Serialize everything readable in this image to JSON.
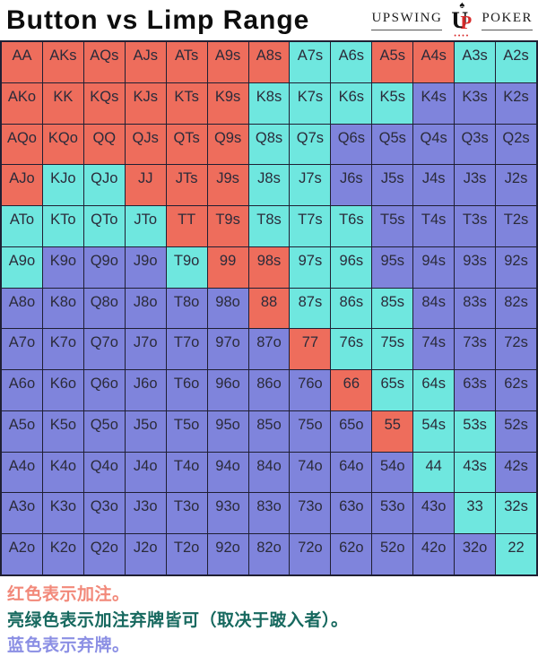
{
  "header": {
    "title": "Button vs Limp Range",
    "logo": {
      "word_left": "UPSWING",
      "word_right": "POKER",
      "monogram_u": "U",
      "monogram_p": "P",
      "spade": "♠",
      "dots": "••••"
    }
  },
  "colors": {
    "raise": "#ee6d5c",
    "raise_or_fold": "#6fe7df",
    "fold": "#7f84dc",
    "grid_line": "#1f1f33",
    "cell_text": "#2b2b3a"
  },
  "chart_data": {
    "type": "heatmap",
    "title": "Button vs Limp Range",
    "action_key": {
      "r": "raise",
      "g": "raise-or-fold (depends on limper)",
      "b": "fold"
    },
    "action_colors": {
      "r": "#ee6d5c",
      "g": "#6fe7df",
      "b": "#7f84dc"
    },
    "hands": [
      [
        "AA",
        "AKs",
        "AQs",
        "AJs",
        "ATs",
        "A9s",
        "A8s",
        "A7s",
        "A6s",
        "A5s",
        "A4s",
        "A3s",
        "A2s"
      ],
      [
        "AKo",
        "KK",
        "KQs",
        "KJs",
        "KTs",
        "K9s",
        "K8s",
        "K7s",
        "K6s",
        "K5s",
        "K4s",
        "K3s",
        "K2s"
      ],
      [
        "AQo",
        "KQo",
        "QQ",
        "QJs",
        "QTs",
        "Q9s",
        "Q8s",
        "Q7s",
        "Q6s",
        "Q5s",
        "Q4s",
        "Q3s",
        "Q2s"
      ],
      [
        "AJo",
        "KJo",
        "QJo",
        "JJ",
        "JTs",
        "J9s",
        "J8s",
        "J7s",
        "J6s",
        "J5s",
        "J4s",
        "J3s",
        "J2s"
      ],
      [
        "ATo",
        "KTo",
        "QTo",
        "JTo",
        "TT",
        "T9s",
        "T8s",
        "T7s",
        "T6s",
        "T5s",
        "T4s",
        "T3s",
        "T2s"
      ],
      [
        "A9o",
        "K9o",
        "Q9o",
        "J9o",
        "T9o",
        "99",
        "98s",
        "97s",
        "96s",
        "95s",
        "94s",
        "93s",
        "92s"
      ],
      [
        "A8o",
        "K8o",
        "Q8o",
        "J8o",
        "T8o",
        "98o",
        "88",
        "87s",
        "86s",
        "85s",
        "84s",
        "83s",
        "82s"
      ],
      [
        "A7o",
        "K7o",
        "Q7o",
        "J7o",
        "T7o",
        "97o",
        "87o",
        "77",
        "76s",
        "75s",
        "74s",
        "73s",
        "72s"
      ],
      [
        "A6o",
        "K6o",
        "Q6o",
        "J6o",
        "T6o",
        "96o",
        "86o",
        "76o",
        "66",
        "65s",
        "64s",
        "63s",
        "62s"
      ],
      [
        "A5o",
        "K5o",
        "Q5o",
        "J5o",
        "T5o",
        "95o",
        "85o",
        "75o",
        "65o",
        "55",
        "54s",
        "53s",
        "52s"
      ],
      [
        "A4o",
        "K4o",
        "Q4o",
        "J4o",
        "T4o",
        "94o",
        "84o",
        "74o",
        "64o",
        "54o",
        "44",
        "43s",
        "42s"
      ],
      [
        "A3o",
        "K3o",
        "Q3o",
        "J3o",
        "T3o",
        "93o",
        "83o",
        "73o",
        "63o",
        "53o",
        "43o",
        "33",
        "32s"
      ],
      [
        "A2o",
        "K2o",
        "Q2o",
        "J2o",
        "T2o",
        "92o",
        "82o",
        "72o",
        "62o",
        "52o",
        "42o",
        "32o",
        "22"
      ]
    ],
    "actions": [
      [
        "r",
        "r",
        "r",
        "r",
        "r",
        "r",
        "r",
        "g",
        "g",
        "r",
        "r",
        "g",
        "g"
      ],
      [
        "r",
        "r",
        "r",
        "r",
        "r",
        "r",
        "g",
        "g",
        "g",
        "g",
        "b",
        "b",
        "b"
      ],
      [
        "r",
        "r",
        "r",
        "r",
        "r",
        "r",
        "g",
        "g",
        "b",
        "b",
        "b",
        "b",
        "b"
      ],
      [
        "r",
        "g",
        "g",
        "r",
        "r",
        "r",
        "g",
        "g",
        "b",
        "b",
        "b",
        "b",
        "b"
      ],
      [
        "g",
        "g",
        "g",
        "g",
        "r",
        "r",
        "g",
        "g",
        "g",
        "b",
        "b",
        "b",
        "b"
      ],
      [
        "g",
        "b",
        "b",
        "b",
        "g",
        "r",
        "r",
        "g",
        "g",
        "b",
        "b",
        "b",
        "b"
      ],
      [
        "b",
        "b",
        "b",
        "b",
        "b",
        "b",
        "r",
        "g",
        "g",
        "g",
        "b",
        "b",
        "b"
      ],
      [
        "b",
        "b",
        "b",
        "b",
        "b",
        "b",
        "b",
        "r",
        "g",
        "g",
        "b",
        "b",
        "b"
      ],
      [
        "b",
        "b",
        "b",
        "b",
        "b",
        "b",
        "b",
        "b",
        "r",
        "g",
        "g",
        "b",
        "b"
      ],
      [
        "b",
        "b",
        "b",
        "b",
        "b",
        "b",
        "b",
        "b",
        "b",
        "r",
        "g",
        "g",
        "b"
      ],
      [
        "b",
        "b",
        "b",
        "b",
        "b",
        "b",
        "b",
        "b",
        "b",
        "b",
        "g",
        "g",
        "b"
      ],
      [
        "b",
        "b",
        "b",
        "b",
        "b",
        "b",
        "b",
        "b",
        "b",
        "b",
        "b",
        "g",
        "g"
      ],
      [
        "b",
        "b",
        "b",
        "b",
        "b",
        "b",
        "b",
        "b",
        "b",
        "b",
        "b",
        "b",
        "g"
      ]
    ]
  },
  "legend": {
    "items": [
      {
        "name": "legend-item-raise",
        "text": "红色表示加注。",
        "color": "#f2897a"
      },
      {
        "name": "legend-item-raise-or-fold",
        "text": "亮绿色表示加注弃牌皆可（取决于跛入者）。",
        "color": "#17695f"
      },
      {
        "name": "legend-item-fold",
        "text": "蓝色表示弃牌。",
        "color": "#8b8fe4"
      }
    ]
  }
}
